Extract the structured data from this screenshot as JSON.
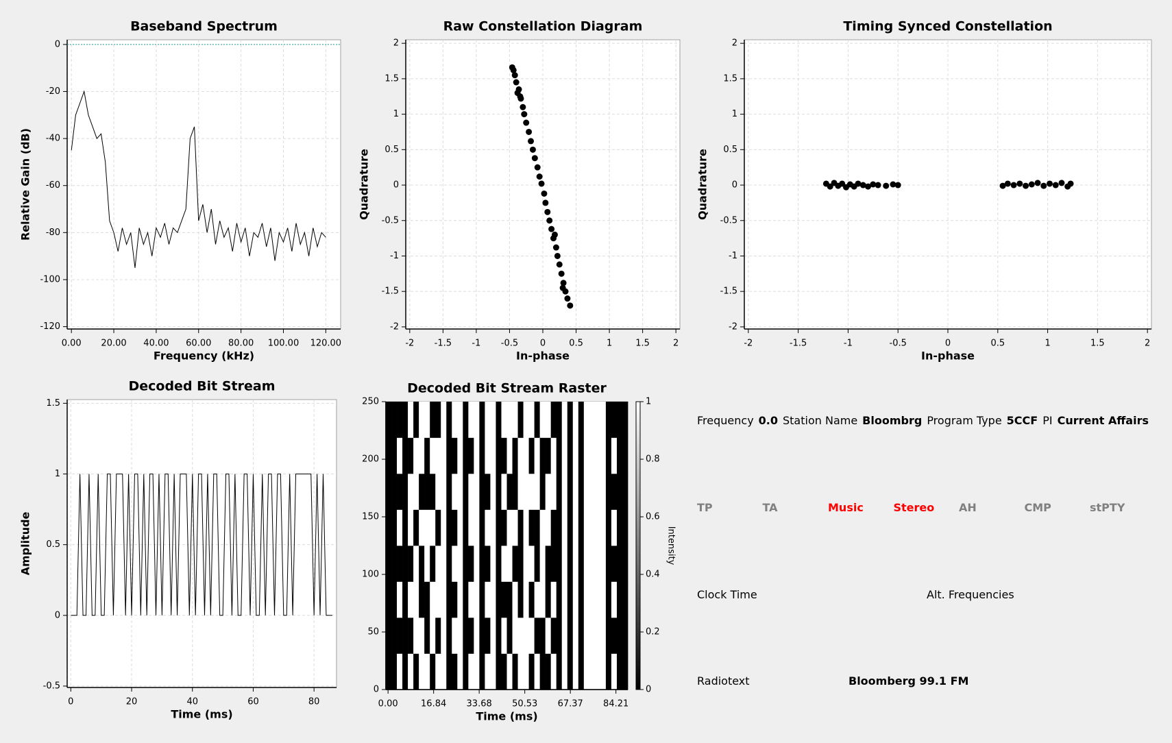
{
  "chart_data": [
    {
      "type": "line",
      "title": "Baseband Spectrum",
      "xlabel": "Frequency (kHz)",
      "ylabel": "Relative Gain (dB)",
      "color": "#000000",
      "grid": true,
      "hline": 0,
      "hline_color": "#2aa198",
      "xlim": [
        -2,
        127
      ],
      "ylim": [
        -121,
        2
      ],
      "xticks": [
        {
          "value": 0,
          "label": "0.00"
        },
        {
          "value": 20,
          "label": "20.00"
        },
        {
          "value": 40,
          "label": "40.00"
        },
        {
          "value": 60,
          "label": "60.00"
        },
        {
          "value": 80,
          "label": "80.00"
        },
        {
          "value": 100,
          "label": "100.00"
        },
        {
          "value": 120,
          "label": "120.00"
        }
      ],
      "yticks": [
        0,
        -20,
        -40,
        -60,
        -80,
        -100,
        -120
      ],
      "x": [
        0,
        2,
        4,
        6,
        8,
        10,
        12,
        14,
        16,
        18,
        20,
        22,
        24,
        26,
        28,
        30,
        32,
        34,
        36,
        38,
        40,
        42,
        44,
        46,
        48,
        50,
        52,
        54,
        56,
        58,
        60,
        62,
        64,
        66,
        68,
        70,
        72,
        74,
        76,
        78,
        80,
        82,
        84,
        86,
        88,
        90,
        92,
        94,
        96,
        98,
        100,
        102,
        104,
        106,
        108,
        110,
        112,
        114,
        116,
        118,
        120
      ],
      "values": [
        -45,
        -30,
        -25,
        -20,
        -30,
        -35,
        -40,
        -38,
        -50,
        -75,
        -80,
        -88,
        -78,
        -85,
        -80,
        -95,
        -78,
        -85,
        -80,
        -90,
        -78,
        -82,
        -76,
        -85,
        -78,
        -80,
        -75,
        -70,
        -40,
        -35,
        -75,
        -68,
        -80,
        -70,
        -85,
        -75,
        -82,
        -78,
        -88,
        -76,
        -84,
        -78,
        -90,
        -80,
        -82,
        -76,
        -86,
        -78,
        -92,
        -80,
        -84,
        -78,
        -88,
        -76,
        -85,
        -80,
        -90,
        -78,
        -86,
        -80,
        -82
      ]
    },
    {
      "type": "scatter",
      "title": "Raw Constellation Diagram",
      "xlabel": "In-phase",
      "ylabel": "Quadrature",
      "color": "#000000",
      "grid": true,
      "xlim": [
        -2.06,
        2.06
      ],
      "ylim": [
        -2.03,
        2.05
      ],
      "xticks": [
        -2,
        -1.5,
        -1,
        -0.5,
        0,
        0.5,
        1,
        1.5,
        2
      ],
      "yticks": [
        -2,
        -1.5,
        -1,
        -0.5,
        0,
        0.5,
        1,
        1.5,
        2
      ],
      "x": [
        -0.46,
        -0.44,
        -0.42,
        -0.4,
        -0.36,
        -0.34,
        -0.33,
        -0.3,
        -0.28,
        -0.25,
        -0.21,
        -0.18,
        -0.15,
        -0.12,
        -0.08,
        -0.05,
        -0.02,
        0.02,
        0.04,
        0.07,
        0.1,
        0.13,
        0.16,
        0.2,
        0.22,
        0.25,
        0.28,
        0.3,
        0.31,
        0.34,
        0.37,
        0.41,
        -0.38,
        0.18
      ],
      "y": [
        1.66,
        1.62,
        1.55,
        1.45,
        1.35,
        1.25,
        1.22,
        1.1,
        1.0,
        0.88,
        0.75,
        0.62,
        0.5,
        0.38,
        0.25,
        0.12,
        0.02,
        -0.12,
        -0.25,
        -0.38,
        -0.5,
        -0.62,
        -0.75,
        -0.88,
        -1.0,
        -1.12,
        -1.25,
        -1.45,
        -1.38,
        -1.5,
        -1.6,
        -1.7,
        1.3,
        -0.7
      ]
    },
    {
      "type": "scatter",
      "title": "Timing Synced Constellation",
      "xlabel": "In-phase",
      "ylabel": "Quadrature",
      "color": "#000000",
      "grid": true,
      "xlim": [
        -2.04,
        2.04
      ],
      "ylim": [
        -2.03,
        2.05
      ],
      "xticks": [
        -2,
        -1.5,
        -1,
        -0.5,
        0,
        0.5,
        1,
        1.5,
        2
      ],
      "yticks": [
        -2,
        -1.5,
        -1,
        -0.5,
        0,
        0.5,
        1,
        1.5,
        2
      ],
      "x": [
        -1.22,
        -1.18,
        -1.14,
        -1.1,
        -1.06,
        -1.02,
        -0.98,
        -0.94,
        -0.9,
        -0.85,
        -0.8,
        -0.75,
        -0.7,
        -0.62,
        -0.55,
        -0.5,
        0.55,
        0.6,
        0.66,
        0.72,
        0.78,
        0.84,
        0.9,
        0.96,
        1.02,
        1.08,
        1.14,
        1.2,
        1.23
      ],
      "y": [
        0.02,
        -0.02,
        0.03,
        -0.01,
        0.02,
        -0.03,
        0.01,
        -0.02,
        0.02,
        0,
        -0.02,
        0.01,
        0,
        -0.01,
        0.01,
        0,
        -0.01,
        0.02,
        0,
        0.02,
        -0.01,
        0.01,
        0.03,
        -0.01,
        0.02,
        0,
        0.03,
        -0.02,
        0.02
      ]
    },
    {
      "type": "line",
      "title": "Decoded Bit Stream",
      "xlabel": "Time (ms)",
      "ylabel": "Amplitude",
      "color": "#000000",
      "grid": true,
      "xlim": [
        -1.2,
        87.4
      ],
      "ylim": [
        -0.51,
        1.526
      ],
      "xticks": [
        0,
        20,
        40,
        60,
        80
      ],
      "yticks": [
        -0.5,
        0,
        0.5,
        1,
        1.5
      ],
      "x": [
        0,
        1,
        2,
        3,
        4,
        5,
        6,
        7,
        8,
        9,
        10,
        11,
        12,
        13,
        14,
        15,
        16,
        17,
        18,
        19,
        20,
        21,
        22,
        23,
        24,
        25,
        26,
        27,
        28,
        29,
        30,
        31,
        32,
        33,
        34,
        35,
        36,
        37,
        38,
        39,
        40,
        41,
        42,
        43,
        44,
        45,
        46,
        47,
        48,
        49,
        50,
        51,
        52,
        53,
        54,
        55,
        56,
        57,
        58,
        59,
        60,
        61,
        62,
        63,
        64,
        65,
        66,
        67,
        68,
        69,
        70,
        71,
        72,
        73,
        74,
        75,
        76,
        77,
        78,
        79,
        80,
        81,
        82,
        83,
        84,
        85,
        86
      ],
      "values": [
        0,
        0,
        0,
        1,
        0,
        0,
        1,
        0,
        0,
        1,
        0,
        0,
        1,
        1,
        0,
        1,
        1,
        1,
        0,
        1,
        0,
        1,
        1,
        0,
        1,
        0,
        1,
        1,
        0,
        1,
        0,
        1,
        1,
        0,
        1,
        0,
        1,
        1,
        1,
        0,
        1,
        0,
        1,
        1,
        0,
        1,
        0,
        1,
        1,
        0,
        0,
        1,
        1,
        0,
        1,
        0,
        0,
        1,
        1,
        0,
        1,
        0,
        0,
        1,
        0,
        1,
        1,
        0,
        1,
        1,
        0,
        0,
        1,
        0,
        1,
        1,
        1,
        1,
        1,
        1,
        0,
        1,
        0,
        1,
        0,
        0,
        0
      ]
    },
    {
      "type": "raster",
      "title": "Decoded Bit Stream Raster",
      "xlabel": "Time (ms)",
      "xlim": [
        -0.8,
        88.6
      ],
      "ylim": [
        0,
        250
      ],
      "xticks": [
        {
          "value": 0,
          "label": "0.00"
        },
        {
          "value": 16.84,
          "label": "16.84"
        },
        {
          "value": 33.68,
          "label": "33.68"
        },
        {
          "value": 50.53,
          "label": "50.53"
        },
        {
          "value": 67.37,
          "label": "67.37"
        },
        {
          "value": 84.21,
          "label": "84.21"
        }
      ],
      "yticks": [
        0,
        50,
        100,
        150,
        200,
        250
      ],
      "colorbar": {
        "label": "Intensity",
        "lim": [
          0,
          1
        ],
        "ticks": [
          0,
          0.2,
          0.4,
          0.6,
          0.8,
          1
        ]
      },
      "z": [
        [
          0,
          0,
          1,
          0,
          1,
          0,
          1,
          1,
          0,
          1,
          1,
          0,
          0,
          1,
          0,
          1,
          1,
          0,
          1,
          1,
          0,
          0,
          1,
          0,
          1,
          1,
          0,
          1,
          0,
          0,
          1,
          0,
          1,
          0,
          1,
          0,
          1,
          1,
          1,
          1,
          0,
          1,
          0,
          0
        ],
        [
          0,
          0,
          0,
          0,
          0,
          1,
          1,
          0,
          1,
          0,
          1,
          0,
          1,
          1,
          0,
          0,
          1,
          0,
          0,
          1,
          0,
          1,
          0,
          1,
          1,
          1,
          1,
          0,
          0,
          1,
          0,
          0,
          1,
          0,
          1,
          0,
          1,
          1,
          1,
          1,
          0,
          0,
          0,
          0
        ],
        [
          0,
          0,
          1,
          0,
          1,
          1,
          0,
          0,
          1,
          1,
          1,
          0,
          0,
          1,
          0,
          1,
          1,
          0,
          1,
          1,
          0,
          0,
          0,
          1,
          0,
          1,
          0,
          1,
          1,
          0,
          1,
          0,
          1,
          0,
          1,
          0,
          1,
          1,
          1,
          1,
          0,
          1,
          0,
          0
        ],
        [
          0,
          0,
          0,
          0,
          0,
          1,
          0,
          1,
          0,
          1,
          1,
          0,
          1,
          1,
          0,
          0,
          1,
          0,
          0,
          1,
          0,
          1,
          1,
          0,
          0,
          1,
          1,
          0,
          1,
          0,
          0,
          0,
          1,
          0,
          1,
          0,
          1,
          1,
          1,
          1,
          0,
          0,
          0,
          0
        ],
        [
          0,
          0,
          1,
          0,
          1,
          0,
          1,
          1,
          1,
          0,
          1,
          0,
          0,
          1,
          0,
          1,
          1,
          0,
          1,
          1,
          0,
          0,
          1,
          1,
          0,
          1,
          0,
          0,
          1,
          1,
          0,
          0,
          1,
          0,
          1,
          0,
          1,
          1,
          1,
          1,
          0,
          1,
          0,
          0
        ],
        [
          0,
          0,
          0,
          0,
          1,
          1,
          0,
          0,
          0,
          1,
          1,
          0,
          1,
          1,
          0,
          1,
          1,
          0,
          0,
          1,
          0,
          1,
          0,
          0,
          1,
          1,
          1,
          1,
          0,
          1,
          1,
          0,
          1,
          0,
          1,
          0,
          1,
          1,
          1,
          1,
          0,
          0,
          0,
          0
        ],
        [
          0,
          0,
          1,
          0,
          0,
          1,
          1,
          0,
          1,
          1,
          1,
          0,
          0,
          1,
          0,
          0,
          1,
          0,
          1,
          1,
          0,
          0,
          1,
          0,
          1,
          1,
          0,
          1,
          0,
          0,
          1,
          0,
          1,
          0,
          1,
          0,
          1,
          1,
          1,
          1,
          0,
          1,
          0,
          0
        ],
        [
          0,
          0,
          0,
          0,
          1,
          0,
          1,
          1,
          0,
          0,
          1,
          0,
          1,
          1,
          0,
          1,
          1,
          0,
          1,
          1,
          0,
          1,
          1,
          1,
          0,
          1,
          1,
          0,
          1,
          1,
          0,
          0,
          1,
          0,
          1,
          0,
          1,
          1,
          1,
          1,
          0,
          0,
          0,
          0
        ]
      ]
    }
  ],
  "rds_panel": {
    "frequency_label": "Frequency",
    "frequency": "0.0",
    "station_label": "Station Name",
    "station": "Bloombrg",
    "program_type_label": "Program Type",
    "program_type": "5CCF",
    "pi_label": "PI",
    "pi": "Current Affairs",
    "flags": [
      {
        "label": "TP",
        "active": false
      },
      {
        "label": "TA",
        "active": false
      },
      {
        "label": "Music",
        "active": true
      },
      {
        "label": "Stereo",
        "active": true
      },
      {
        "label": "AH",
        "active": false
      },
      {
        "label": "CMP",
        "active": false
      },
      {
        "label": "stPTY",
        "active": false
      }
    ],
    "active_color": "#ff0000",
    "inactive_color": "#808080",
    "clock_label": "Clock Time",
    "alt_freq_label": "Alt. Frequencies",
    "radiotext_label": "Radiotext",
    "radiotext": "Bloomberg 99.1 FM"
  }
}
